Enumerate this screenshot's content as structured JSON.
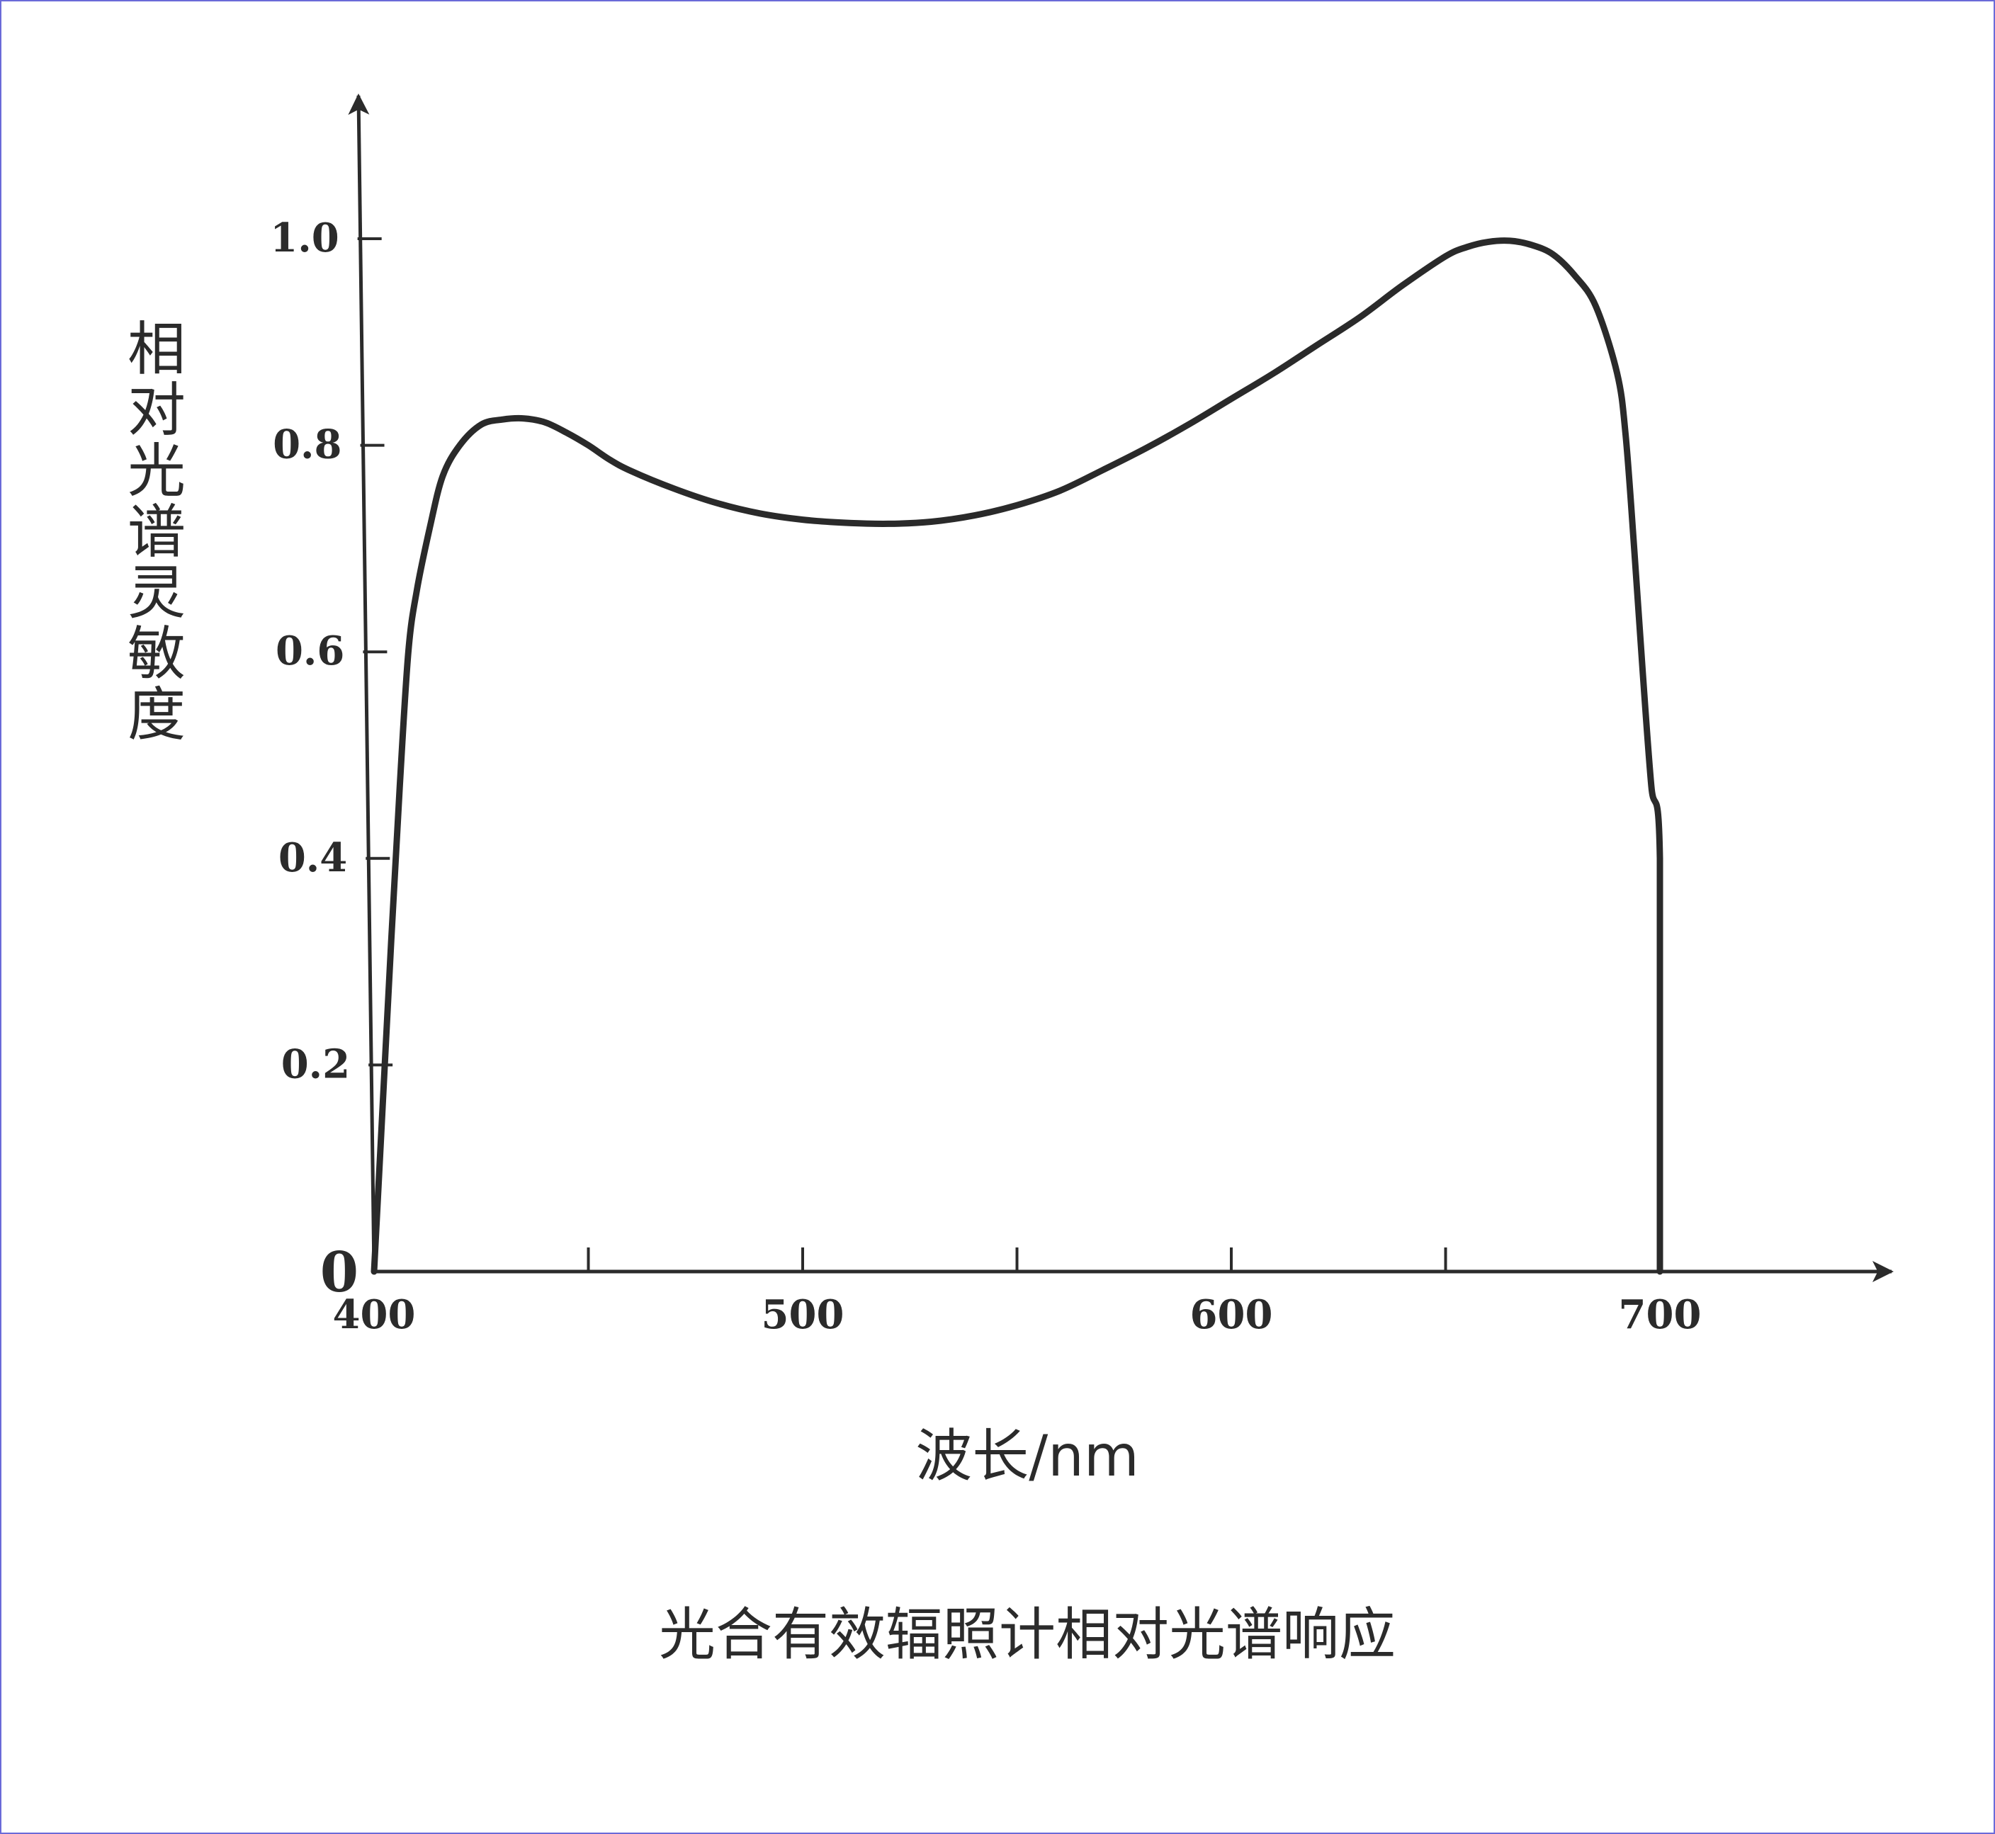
{
  "chart_data": {
    "type": "line",
    "title": "光合有效辐照计相对光谱响应",
    "xlabel": "波长/nm",
    "ylabel": "相对光谱灵敏度",
    "xlim": [
      400,
      750
    ],
    "ylim": [
      0,
      1.1
    ],
    "x_ticks": [
      {
        "value": 400,
        "label": "400"
      },
      {
        "value": 450,
        "label": ""
      },
      {
        "value": 500,
        "label": "500"
      },
      {
        "value": 550,
        "label": ""
      },
      {
        "value": 600,
        "label": "600"
      },
      {
        "value": 650,
        "label": ""
      },
      {
        "value": 700,
        "label": "700"
      }
    ],
    "y_ticks": [
      {
        "value": 0,
        "label": "0"
      },
      {
        "value": 0.2,
        "label": "0.2"
      },
      {
        "value": 0.4,
        "label": "0.4"
      },
      {
        "value": 0.6,
        "label": "0.6"
      },
      {
        "value": 0.8,
        "label": "0.8"
      },
      {
        "value": 1.0,
        "label": "1.0"
      }
    ],
    "grid": false,
    "series": [
      {
        "color": "#2a2a2a",
        "x": [
          400,
          402,
          404,
          406,
          408,
          410,
          413,
          416,
          420,
          425,
          430,
          435,
          440,
          445,
          450,
          455,
          460,
          470,
          480,
          490,
          500,
          510,
          520,
          530,
          540,
          550,
          560,
          570,
          580,
          590,
          600,
          610,
          620,
          630,
          640,
          650,
          655,
          660,
          665,
          670,
          675,
          680,
          685,
          690,
          692,
          694,
          696,
          698,
          700,
          700
        ],
        "y": [
          0.0,
          0.16,
          0.32,
          0.47,
          0.6,
          0.66,
          0.72,
          0.77,
          0.8,
          0.82,
          0.825,
          0.826,
          0.822,
          0.812,
          0.8,
          0.786,
          0.775,
          0.758,
          0.744,
          0.734,
          0.728,
          0.725,
          0.724,
          0.726,
          0.732,
          0.742,
          0.756,
          0.776,
          0.797,
          0.82,
          0.845,
          0.87,
          0.897,
          0.924,
          0.955,
          0.983,
          0.992,
          0.997,
          0.998,
          0.994,
          0.985,
          0.965,
          0.935,
          0.87,
          0.81,
          0.7,
          0.58,
          0.47,
          0.4,
          0.0
        ]
      }
    ]
  }
}
